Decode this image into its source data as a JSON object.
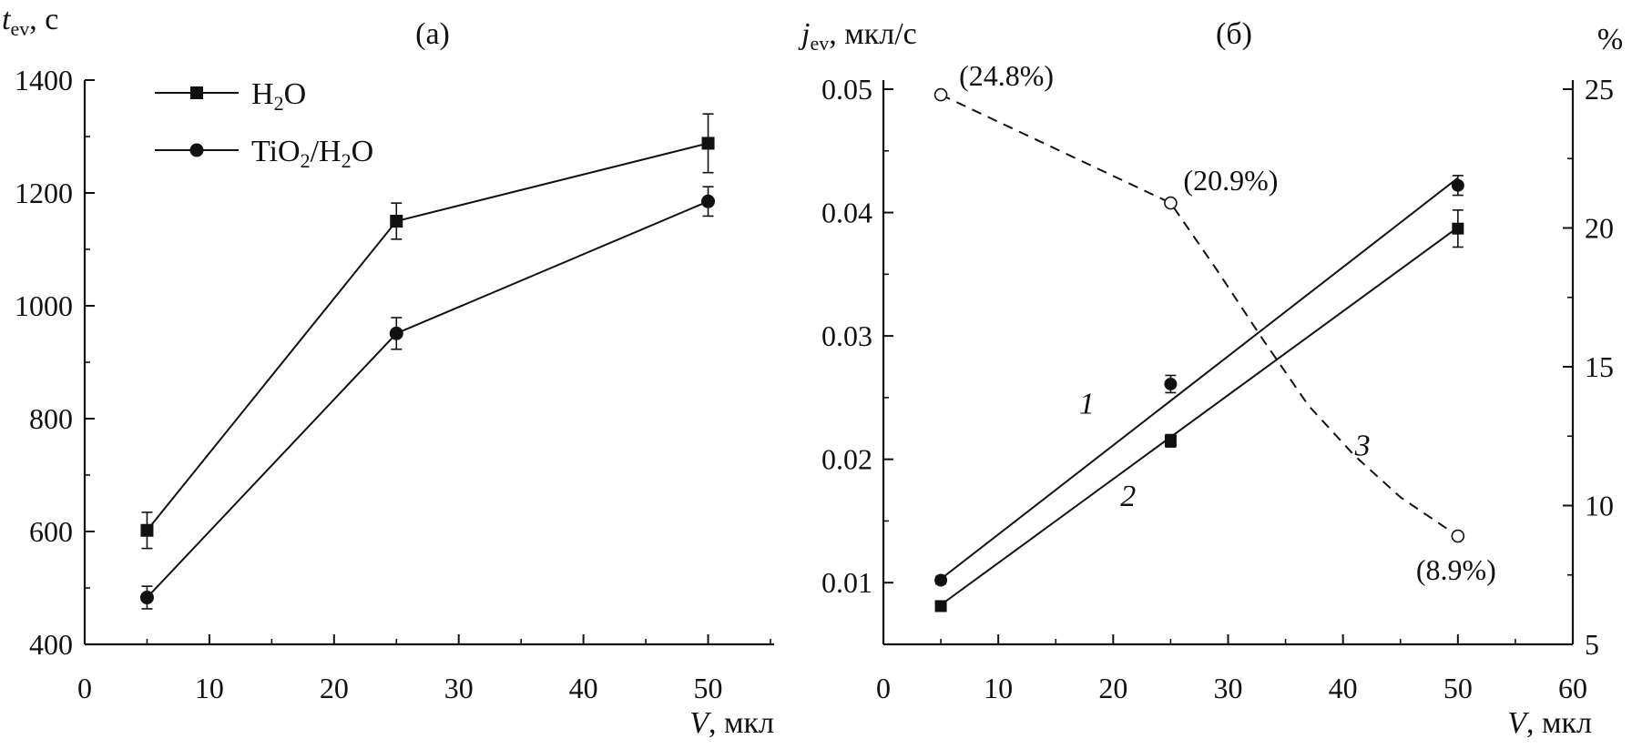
{
  "chart_data": [
    {
      "type": "line",
      "panel": "(a)",
      "ylabel": {
        "sym": "t",
        "sub": "ev",
        "unit": ", с"
      },
      "xlabel": {
        "sym": "V",
        "unit": ", мкл"
      },
      "xlim": [
        0,
        55
      ],
      "ylim": [
        400,
        1400
      ],
      "xticks": [
        "0",
        "10",
        "20",
        "30",
        "40",
        "50"
      ],
      "yticks": [
        "400",
        "600",
        "800",
        "1000",
        "1200",
        "1400"
      ],
      "legend_position": "top-left",
      "series": [
        {
          "name": "H₂O",
          "legend": {
            "a": "H",
            "sub": "2",
            "b": "O"
          },
          "marker": "square",
          "x": [
            5,
            25,
            50
          ],
          "y": [
            602,
            1150,
            1288
          ],
          "err": [
            32,
            32,
            52
          ]
        },
        {
          "name": "TiO₂/H₂O",
          "legend": {
            "a": "TiO",
            "sub": "2",
            "b": "/H",
            "sub2": "2",
            "c": "O"
          },
          "marker": "circle",
          "x": [
            5,
            25,
            50
          ],
          "y": [
            483,
            951,
            1185
          ],
          "err": [
            20,
            28,
            26
          ]
        }
      ]
    },
    {
      "type": "scatter",
      "panel": "(б)",
      "ylabel": {
        "sym": "j",
        "sub": "ev",
        "unit": ", мкл/с"
      },
      "y2label": "%",
      "xlabel": {
        "sym": "V",
        "unit": ", мкл"
      },
      "xlim": [
        0,
        60
      ],
      "ylim": [
        0.005,
        0.05
      ],
      "y2lim": [
        5,
        25
      ],
      "xticks": [
        "0",
        "10",
        "20",
        "30",
        "40",
        "50",
        "60"
      ],
      "yticks": [
        "0.01",
        "0.02",
        "0.03",
        "0.04",
        "0.05"
      ],
      "y2ticks": [
        "5",
        "10",
        "15",
        "20",
        "25"
      ],
      "series": [
        {
          "name": "1",
          "marker": "circle",
          "x": [
            5,
            25,
            50
          ],
          "y": [
            0.0102,
            0.0261,
            0.0422
          ],
          "err": [
            0.0003,
            0.0007,
            0.0008
          ],
          "fit": {
            "x": [
              5,
              50
            ],
            "y": [
              0.0103,
              0.0428
            ]
          },
          "label_at": {
            "x": 17.7,
            "y": 0.0237
          }
        },
        {
          "name": "2",
          "marker": "square",
          "x": [
            5,
            25,
            50
          ],
          "y": [
            0.0081,
            0.0215,
            0.0387
          ],
          "err": [
            0.0003,
            0.0005,
            0.0015
          ],
          "fit": {
            "x": [
              5,
              50
            ],
            "y": [
              0.0082,
              0.0388
            ]
          },
          "label_at": {
            "x": 21.3,
            "y": 0.0162
          }
        },
        {
          "name": "3",
          "axis": "right",
          "style": "dashed",
          "marker": "open-circle",
          "x": [
            5,
            25,
            50
          ],
          "y": [
            24.8,
            20.9,
            8.9
          ],
          "labels": [
            "(24.8%)",
            "(20.9%)",
            "(8.9%)"
          ],
          "curve": {
            "x": [
              5,
              25,
              29,
              33,
              37,
              41,
              45,
              50
            ],
            "y": [
              24.8,
              20.9,
              18.5,
              16.0,
              13.6,
              11.8,
              10.3,
              8.9
            ]
          },
          "label_at": {
            "x": 41.7,
            "y": 11.8
          }
        }
      ]
    }
  ]
}
